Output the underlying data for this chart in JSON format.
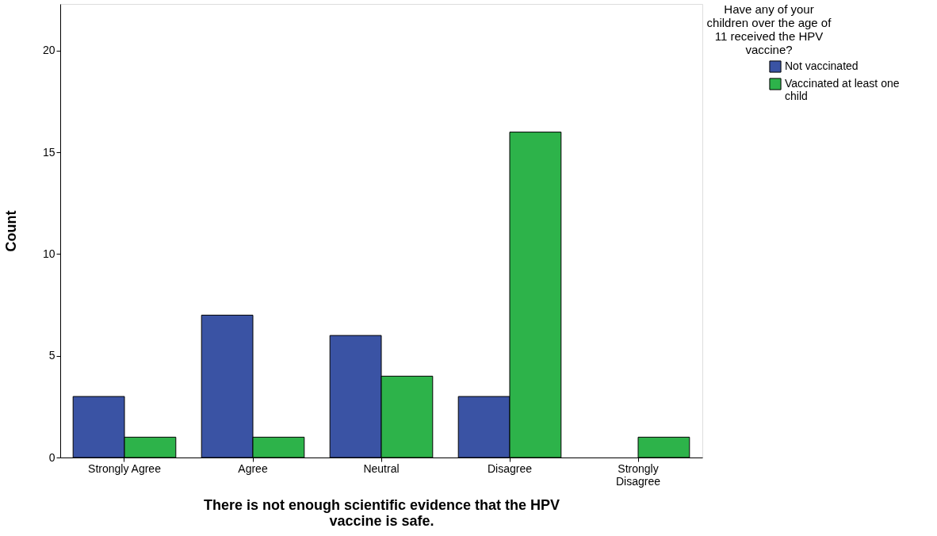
{
  "chart_data": {
    "type": "bar",
    "xlabel": "There is not enough scientific evidence that the HPV vaccine is safe.",
    "ylabel": "Count",
    "legend_title": "Have any of your children over the age of 11 received the HPV vaccine?",
    "categories": [
      "Strongly Agree",
      "Agree",
      "Neutral",
      "Disagree",
      "Strongly Disagree"
    ],
    "series": [
      {
        "name": "Not vaccinated",
        "color": "#3a53a4",
        "values": [
          3,
          7,
          6,
          3,
          null
        ]
      },
      {
        "name": "Vaccinated at least one child",
        "color": "#2db34a",
        "values": [
          1,
          1,
          4,
          16,
          1
        ]
      }
    ],
    "ylim": [
      0,
      22.3
    ],
    "yticks": [
      0,
      5,
      10,
      15,
      20
    ],
    "grid": false,
    "legend": "top right"
  }
}
